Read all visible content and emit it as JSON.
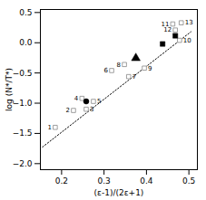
{
  "chart_data": {
    "type": "scatter",
    "xlabel": "(ε-1)/(2ε+1)",
    "ylabel": "log (N*/T*)",
    "xlim": [
      0.15,
      0.52
    ],
    "ylim": [
      -2.1,
      0.55
    ],
    "xticks": [
      0.2,
      0.3,
      0.4,
      0.5
    ],
    "yticks": [
      {
        "value": -2.0,
        "label": "−2.0"
      },
      {
        "value": -1.5,
        "label": "−1.5"
      },
      {
        "value": -1.0,
        "label": "−1.0"
      },
      {
        "value": -0.5,
        "label": "−0.5"
      },
      {
        "value": 0.0,
        "label": "0.0"
      },
      {
        "value": 0.5,
        "label": "0.5"
      }
    ],
    "series": [
      {
        "type": "line",
        "line_style": "dotted",
        "color": "black",
        "x": [
          0.155,
          0.505
        ],
        "values": [
          -1.72525,
          0.18225
        ]
      },
      {
        "type": "scatter",
        "marker": "open_square",
        "color": "#888888",
        "x": [
          0.185,
          0.228,
          0.258,
          0.248,
          0.275,
          0.318,
          0.358,
          0.348,
          0.395,
          0.478,
          0.462,
          0.468,
          0.482
        ],
        "values": [
          -1.4,
          -1.12,
          -1.1,
          -0.92,
          -0.97,
          -0.46,
          -0.56,
          -0.36,
          -0.42,
          0.04,
          0.31,
          0.21,
          0.33
        ],
        "labels": [
          "1",
          "2",
          "3",
          "4",
          "5",
          "6",
          "7",
          "8",
          "9",
          "10",
          "11",
          "12",
          "13"
        ],
        "label_side": [
          "left",
          "left",
          "right",
          "left",
          "right",
          "left",
          "right",
          "left",
          "right",
          "right",
          "left",
          "left",
          "right"
        ]
      },
      {
        "type": "scatter",
        "marker": "circle",
        "color": "black",
        "x": [
          0.258
        ],
        "values": [
          -0.97
        ]
      },
      {
        "type": "scatter",
        "marker": "triangle",
        "color": "black",
        "x": [
          0.375
        ],
        "values": [
          -0.255
        ]
      },
      {
        "type": "scatter",
        "marker": "square",
        "color": "black",
        "x": [
          0.438,
          0.468
        ],
        "values": [
          -0.02,
          0.115
        ]
      }
    ]
  }
}
